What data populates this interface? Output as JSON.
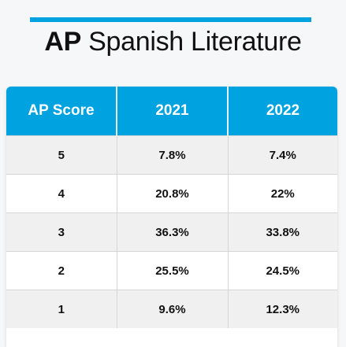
{
  "title": {
    "bold_part": "AP",
    "regular_part": "Spanish Literature"
  },
  "colors": {
    "accent": "#00a3e0",
    "header_text": "#ffffff",
    "row_alt": "#f0f0f0"
  },
  "table": {
    "headers": [
      "AP Score",
      "2021",
      "2022"
    ],
    "rows": [
      [
        "5",
        "7.8%",
        "7.4%"
      ],
      [
        "4",
        "20.8%",
        "22%"
      ],
      [
        "3",
        "36.3%",
        "33.8%"
      ],
      [
        "2",
        "25.5%",
        "24.5%"
      ],
      [
        "1",
        "9.6%",
        "12.3%"
      ]
    ]
  }
}
